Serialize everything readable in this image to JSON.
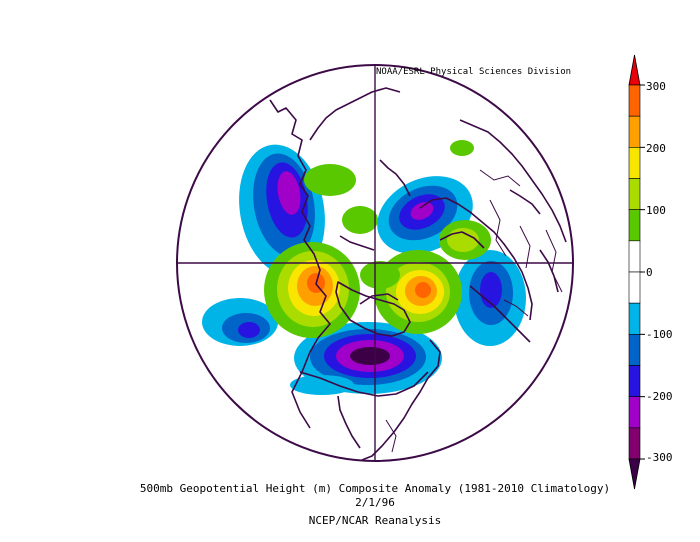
{
  "credit": "NOAA/ESRL Physical Sciences Division",
  "caption": {
    "line1": "500mb Geopotential Height (m) Composite Anomaly (1981-2010 Climatology)",
    "line2": "2/1/96",
    "line3": "NCEP/NCAR Reanalysis"
  },
  "colorbar": {
    "ticks": [
      "300",
      "200",
      "100",
      "0",
      "-100",
      "-200",
      "-300"
    ],
    "colors": [
      "#e8000b",
      "#ff6400",
      "#ffa000",
      "#f8e600",
      "#aadc00",
      "#5ac800",
      "#ffffff",
      "#ffffff",
      "#00b4e8",
      "#0064c8",
      "#2814e0",
      "#a000c8",
      "#82006e",
      "#3c0046"
    ]
  },
  "map": {
    "projection": "north-polar-stereographic",
    "boundary_color": "#3c0a46",
    "coastline_color": "#3c0a46"
  }
}
